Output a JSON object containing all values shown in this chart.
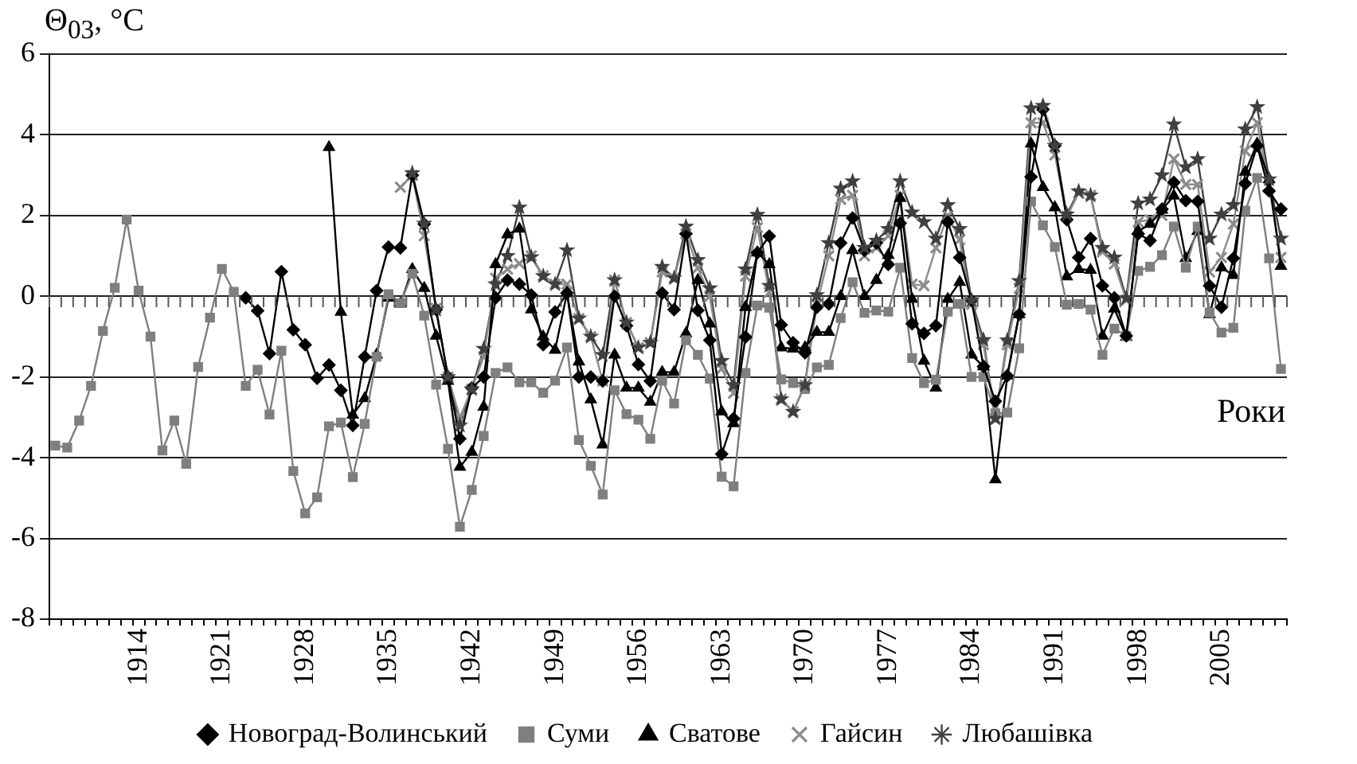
{
  "chart_data": {
    "type": "line",
    "ylabel": "Θ$_{03}$, °C",
    "xlabel": "Роки",
    "categories": [
      null,
      null,
      null,
      null,
      null,
      null,
      null,
      "1914",
      null,
      null,
      null,
      null,
      null,
      null,
      "1921",
      null,
      null,
      null,
      null,
      null,
      null,
      "1928",
      null,
      null,
      null,
      null,
      null,
      null,
      "1935",
      null,
      null,
      null,
      null,
      null,
      null,
      "1942",
      null,
      null,
      null,
      null,
      null,
      null,
      "1949",
      null,
      null,
      null,
      null,
      null,
      null,
      "1956",
      null,
      null,
      null,
      null,
      null,
      null,
      "1963",
      null,
      null,
      null,
      null,
      null,
      null,
      "1970",
      null,
      null,
      null,
      null,
      null,
      null,
      "1977",
      null,
      null,
      null,
      null,
      null,
      null,
      "1984",
      null,
      null,
      null,
      null,
      null,
      null,
      "1991",
      null,
      null,
      null,
      null,
      null,
      null,
      "1998",
      null,
      null,
      null,
      null,
      null,
      null,
      "2005",
      null,
      null,
      null,
      null,
      null
    ],
    "series": [
      {
        "name": "Новоград-Волинський",
        "color": "#000000",
        "marker": "diamond",
        "values": [
          null,
          null,
          null,
          null,
          null,
          null,
          null,
          null,
          null,
          null,
          null,
          null,
          null,
          null,
          null,
          null,
          -0.04,
          -0.36,
          -1.42,
          0.61,
          -0.83,
          -1.2,
          -2.03,
          -1.7,
          -2.33,
          -3.2,
          -1.5,
          0.14,
          1.22,
          1.2,
          3.0,
          1.79,
          -0.33,
          -2.0,
          -3.53,
          -2.27,
          -2.0,
          -0.04,
          0.4,
          0.3,
          0.03,
          -1.2,
          -0.39,
          0.08,
          -2.0,
          -2.0,
          -2.1,
          0.0,
          -0.73,
          -1.69,
          -2.1,
          0.08,
          -0.33,
          1.55,
          -0.35,
          -1.09,
          -3.91,
          -3.03,
          -1.01,
          1.08,
          1.49,
          -0.71,
          -1.15,
          -1.4,
          -0.27,
          -0.19,
          1.32,
          1.94,
          1.14,
          1.32,
          0.79,
          1.81,
          -0.68,
          -0.92,
          -0.73,
          1.84,
          0.96,
          -0.1,
          -1.74,
          -2.6,
          -1.97,
          -0.45,
          2.96,
          4.63,
          3.73,
          1.9,
          0.96,
          1.43,
          0.26,
          -0.04,
          -0.98,
          1.55,
          1.38,
          2.16,
          2.82,
          2.37,
          2.35,
          0.26,
          -0.27,
          0.94,
          2.79,
          3.73,
          2.61,
          2.16
        ]
      },
      {
        "name": "Суми",
        "color": "#7f7f7f",
        "marker": "square",
        "values": [
          -3.7,
          -3.75,
          -3.08,
          -2.22,
          -0.86,
          0.21,
          1.9,
          0.14,
          -1.0,
          -3.82,
          -3.08,
          -4.15,
          -1.75,
          -0.53,
          0.68,
          0.11,
          -2.22,
          -1.82,
          -2.93,
          -1.35,
          -4.33,
          -5.38,
          -4.98,
          -3.22,
          -3.13,
          -4.48,
          -3.16,
          -1.5,
          0.05,
          -0.17,
          0.56,
          -0.48,
          -2.19,
          -3.78,
          -5.71,
          -4.8,
          -3.46,
          -1.9,
          -1.76,
          -2.13,
          -2.13,
          -2.39,
          -2.09,
          -1.27,
          -3.56,
          -4.2,
          -4.91,
          -2.33,
          -2.92,
          -3.06,
          -3.53,
          -2.09,
          -2.66,
          -1.09,
          -1.45,
          -2.04,
          -4.47,
          -4.71,
          -1.9,
          -0.23,
          -0.28,
          -2.06,
          -2.15,
          -2.3,
          -1.76,
          -1.7,
          -0.54,
          0.35,
          -0.41,
          -0.35,
          -0.38,
          0.71,
          -1.53,
          -2.15,
          -2.07,
          -0.38,
          -0.19,
          -2.0,
          -2.0,
          -2.9,
          -2.88,
          -1.29,
          2.35,
          1.76,
          1.22,
          -0.21,
          -0.19,
          -0.33,
          -1.45,
          -0.8,
          -0.98,
          0.63,
          0.73,
          1.02,
          1.73,
          0.71,
          1.73,
          -0.4,
          -0.9,
          -0.78,
          2.12,
          2.93,
          0.94,
          -1.8
        ]
      },
      {
        "name": "Сватове",
        "color": "#000000",
        "marker": "triangle",
        "values": [
          null,
          null,
          null,
          null,
          null,
          null,
          null,
          null,
          null,
          null,
          null,
          null,
          null,
          null,
          null,
          null,
          null,
          null,
          null,
          null,
          null,
          null,
          null,
          3.69,
          -0.39,
          -2.94,
          -2.53,
          -1.45,
          -0.04,
          -0.19,
          0.67,
          0.2,
          -0.98,
          -2.1,
          -4.23,
          -3.86,
          -2.74,
          0.79,
          1.53,
          1.67,
          -0.33,
          -1.0,
          -1.33,
          0.08,
          -1.62,
          -2.56,
          -3.68,
          -1.45,
          -2.27,
          -2.27,
          -2.62,
          -1.88,
          -1.88,
          -0.92,
          0.4,
          -0.68,
          -2.86,
          -3.15,
          -0.27,
          1.08,
          0.79,
          -1.27,
          -1.3,
          -1.27,
          -0.89,
          -0.89,
          0.0,
          1.14,
          0.0,
          0.4,
          1.02,
          2.43,
          -0.07,
          -1.6,
          -2.27,
          -0.07,
          0.35,
          -1.45,
          -1.74,
          -4.54,
          -1.97,
          -0.45,
          3.78,
          2.7,
          2.2,
          0.49,
          0.67,
          0.65,
          -0.98,
          -0.31,
          -1.01,
          1.61,
          1.79,
          2.14,
          2.49,
          0.94,
          1.61,
          -0.45,
          0.71,
          0.52,
          3.08,
          3.78,
          2.9,
          0.75
        ]
      },
      {
        "name": "Гайсин",
        "color": "#8c8c8c",
        "marker": "cross",
        "values": [
          null,
          null,
          null,
          null,
          null,
          null,
          null,
          null,
          null,
          null,
          null,
          null,
          null,
          null,
          null,
          null,
          null,
          null,
          null,
          null,
          null,
          null,
          null,
          null,
          null,
          null,
          null,
          null,
          null,
          2.7,
          3.0,
          1.5,
          -0.3,
          -2.0,
          -3.0,
          -2.3,
          -1.5,
          0.45,
          0.67,
          0.81,
          1.0,
          0.51,
          0.3,
          0.3,
          -0.55,
          -1.0,
          -2.1,
          0.4,
          -0.65,
          -1.27,
          -1.15,
          0.6,
          0.45,
          1.55,
          0.7,
          0.0,
          -1.8,
          -2.4,
          0.5,
          1.7,
          0.1,
          -2.55,
          -2.86,
          -2.2,
          -0.2,
          1.0,
          2.4,
          2.5,
          1.0,
          1.2,
          1.5,
          2.5,
          0.3,
          0.26,
          1.2,
          2.0,
          1.4,
          -0.2,
          -1.2,
          -3.03,
          -1.2,
          0.2,
          4.3,
          4.3,
          3.5,
          1.98,
          2.55,
          2.5,
          1.1,
          0.8,
          -0.1,
          1.84,
          1.9,
          2.0,
          3.4,
          2.77,
          2.77,
          0.6,
          0.96,
          1.79,
          3.6,
          4.3,
          2.7,
          0.96
        ]
      },
      {
        "name": "Любашівка",
        "color": "#404040",
        "marker": "star",
        "values": [
          null,
          null,
          null,
          null,
          null,
          null,
          null,
          null,
          null,
          null,
          null,
          null,
          null,
          null,
          null,
          null,
          null,
          null,
          null,
          null,
          null,
          null,
          null,
          null,
          null,
          null,
          null,
          null,
          null,
          null,
          3.05,
          1.8,
          -0.33,
          -2.0,
          -3.2,
          -2.3,
          -1.3,
          0.3,
          1.0,
          2.2,
          0.97,
          0.5,
          0.3,
          1.14,
          -0.55,
          -1.0,
          -1.45,
          0.4,
          -0.65,
          -1.27,
          -1.15,
          0.73,
          0.45,
          1.73,
          0.9,
          0.2,
          -1.6,
          -2.2,
          0.67,
          2.02,
          0.26,
          -2.55,
          -2.86,
          -2.2,
          0.03,
          1.32,
          2.67,
          2.85,
          1.2,
          1.38,
          1.67,
          2.85,
          2.08,
          1.84,
          1.43,
          2.26,
          1.67,
          -0.1,
          -1.08,
          -3.03,
          -1.09,
          0.38,
          4.66,
          4.72,
          3.73,
          2.03,
          2.6,
          2.5,
          1.2,
          0.96,
          -0.04,
          2.3,
          2.4,
          3.0,
          4.26,
          3.2,
          3.4,
          1.43,
          2.03,
          2.26,
          4.14,
          4.69,
          2.9,
          1.43
        ]
      }
    ],
    "ylim": [
      -8,
      6
    ],
    "yticks": [
      -8,
      -6,
      -4,
      -2,
      0,
      2,
      4,
      6
    ],
    "grid": "y",
    "legend": "bottom",
    "line_style": "solid"
  }
}
